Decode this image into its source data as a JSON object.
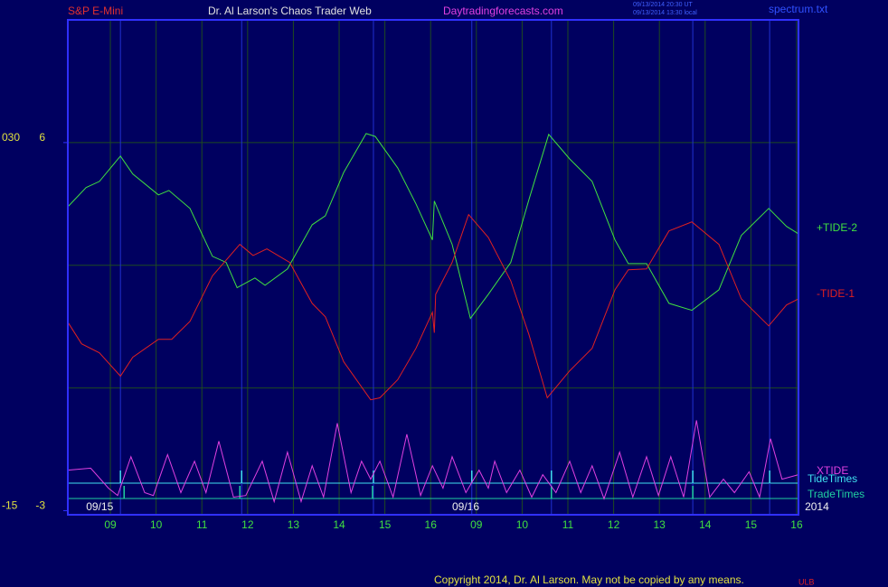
{
  "chart_data": {
    "type": "line",
    "title": "S&P E-Mini",
    "subtitle": "Dr. Al Larson's Chaos Trader Web",
    "site": "Daytradingforecasts.com",
    "timestamps": [
      "09/13/2014 20:30 UT",
      "09/13/2014 13:30 local"
    ],
    "file": "spectrum.txt",
    "copyright": "Copyright 2014, Dr. Al Larson. May not be copied by any means.",
    "mark": "ULB",
    "xlim": [
      8.07,
      24.04
    ],
    "xticks": [
      {
        "value": 9,
        "label": "09"
      },
      10,
      11,
      12,
      13,
      14,
      15,
      16,
      {
        "value": 17,
        "label": "09"
      },
      {
        "value": 18,
        "label": "10"
      },
      {
        "value": 19,
        "label": "11"
      },
      {
        "value": 20,
        "label": "12"
      },
      {
        "value": 21,
        "label": "13"
      },
      {
        "value": 22,
        "label": "14"
      },
      {
        "value": 23,
        "label": "15"
      },
      {
        "value": 24,
        "label": "16"
      }
    ],
    "date_labels": [
      {
        "value": 8.47,
        "label": "09/15"
      },
      {
        "value": 16.47,
        "label": "09/16"
      },
      {
        "value": 24.18,
        "label": "2014"
      }
    ],
    "ylim": [
      -3.1,
      9
    ],
    "yticks": [
      6,
      -3
    ],
    "y2lim": [
      -15.5,
      45
    ],
    "y2ticks": [
      {
        "value": 30,
        "label": "030"
      },
      -15
    ],
    "grid_y": [
      0,
      3,
      6
    ],
    "grid": true,
    "series": [
      {
        "name": "+TIDE-2",
        "color": "#40e040",
        "x": [
          8.07,
          8.47,
          8.76,
          9.22,
          9.49,
          10.05,
          10.28,
          10.74,
          11.23,
          11.53,
          11.77,
          12.16,
          12.38,
          12.87,
          13.41,
          13.7,
          14.1,
          14.59,
          14.79,
          15.28,
          15.68,
          16.04,
          16.08,
          16.47,
          16.87,
          17.26,
          17.75,
          18.15,
          18.58,
          19.04,
          19.53,
          20.03,
          20.32,
          20.72,
          21.21,
          21.71,
          22.3,
          22.79,
          23.39,
          23.78,
          24.04
        ],
        "values": [
          4.43,
          4.9,
          5.05,
          5.67,
          5.23,
          4.72,
          4.83,
          4.39,
          3.22,
          3.07,
          2.45,
          2.69,
          2.51,
          2.91,
          3.99,
          4.21,
          5.27,
          6.22,
          6.15,
          5.38,
          4.5,
          3.62,
          4.57,
          3.51,
          1.7,
          2.29,
          3.07,
          4.61,
          6.2,
          5.6,
          5.05,
          3.62,
          3.04,
          3.04,
          2.07,
          1.9,
          2.4,
          3.73,
          4.39,
          3.95,
          3.77
        ]
      },
      {
        "name": "-TIDE-1",
        "color": "#e02020",
        "x": [
          8.07,
          8.37,
          8.76,
          9.22,
          9.49,
          10.05,
          10.34,
          10.74,
          11.23,
          11.83,
          12.12,
          12.42,
          12.92,
          13.41,
          13.7,
          14.1,
          14.69,
          14.89,
          15.28,
          15.68,
          16.04,
          16.08,
          16.11,
          16.47,
          16.83,
          17.26,
          17.75,
          18.15,
          18.55,
          19.04,
          19.53,
          20.03,
          20.32,
          20.72,
          21.21,
          21.71,
          22.3,
          22.79,
          23.39,
          23.78,
          24.04
        ],
        "values": [
          1.61,
          1.08,
          0.86,
          0.29,
          0.75,
          1.19,
          1.19,
          1.63,
          2.74,
          3.51,
          3.24,
          3.4,
          3.07,
          2.07,
          1.74,
          0.64,
          -0.29,
          -0.24,
          0.2,
          0.97,
          1.85,
          1.35,
          2.29,
          3.07,
          4.24,
          3.68,
          2.62,
          1.3,
          -0.24,
          0.42,
          0.97,
          2.4,
          2.89,
          2.91,
          3.84,
          4.06,
          3.51,
          2.18,
          1.52,
          2.03,
          2.18
        ]
      },
      {
        "name": "XTIDE",
        "color": "#e040e0",
        "x": [
          8.07,
          8.57,
          8.96,
          9.16,
          9.45,
          9.75,
          9.94,
          10.25,
          10.54,
          10.84,
          11.09,
          11.37,
          11.69,
          11.96,
          12.32,
          12.58,
          12.87,
          13.17,
          13.41,
          13.66,
          13.96,
          14.26,
          14.49,
          14.69,
          14.89,
          15.18,
          15.48,
          15.78,
          16.04,
          16.27,
          16.47,
          16.77,
          17.06,
          17.26,
          17.4,
          17.66,
          17.95,
          18.21,
          18.45,
          18.74,
          19.04,
          19.28,
          19.53,
          19.79,
          20.13,
          20.42,
          20.72,
          20.98,
          21.25,
          21.53,
          21.81,
          22.1,
          22.4,
          22.64,
          22.96,
          23.19,
          23.43,
          23.68,
          24.04
        ],
        "values": [
          -2.01,
          -1.96,
          -2.45,
          -2.63,
          -1.68,
          -2.56,
          -2.63,
          -1.63,
          -2.56,
          -1.79,
          -2.56,
          -1.3,
          -2.67,
          -2.63,
          -1.79,
          -2.78,
          -1.57,
          -2.78,
          -1.9,
          -2.67,
          -0.86,
          -2.56,
          -1.79,
          -2.23,
          -1.79,
          -2.67,
          -1.13,
          -2.63,
          -1.9,
          -2.45,
          -1.68,
          -2.56,
          -2.01,
          -2.45,
          -1.79,
          -2.56,
          -2.01,
          -2.67,
          -2.12,
          -2.56,
          -1.79,
          -2.56,
          -1.9,
          -2.71,
          -1.57,
          -2.67,
          -1.68,
          -2.63,
          -1.68,
          -2.67,
          -0.79,
          -2.67,
          -2.23,
          -2.56,
          -2.05,
          -2.67,
          -1.24,
          -2.23,
          -2.12
        ]
      }
    ],
    "events": [
      {
        "name": "TideTimes",
        "color": "#40e0f0",
        "times": [
          9.22,
          11.87,
          14.75,
          16.9,
          18.64,
          21.73,
          23.41
        ]
      },
      {
        "name": "TradeTimes",
        "color": "#20d0a0",
        "times": [
          9.3,
          11.83,
          14.73,
          18.64,
          21.73
        ]
      }
    ]
  }
}
